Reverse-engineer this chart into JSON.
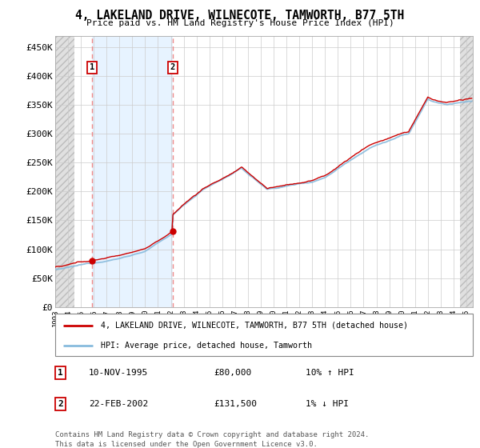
{
  "title": "4, LAKELAND DRIVE, WILNECOTE, TAMWORTH, B77 5TH",
  "subtitle": "Price paid vs. HM Land Registry's House Price Index (HPI)",
  "ylabel_ticks": [
    "£0",
    "£50K",
    "£100K",
    "£150K",
    "£200K",
    "£250K",
    "£300K",
    "£350K",
    "£400K",
    "£450K"
  ],
  "ytick_values": [
    0,
    50000,
    100000,
    150000,
    200000,
    250000,
    300000,
    350000,
    400000,
    450000
  ],
  "ylim": [
    0,
    470000
  ],
  "xlim_start": 1993.0,
  "xlim_end": 2025.5,
  "xtick_years": [
    1993,
    1994,
    1995,
    1996,
    1997,
    1998,
    1999,
    2000,
    2001,
    2002,
    2003,
    2004,
    2005,
    2006,
    2007,
    2008,
    2009,
    2010,
    2011,
    2012,
    2013,
    2014,
    2015,
    2016,
    2017,
    2018,
    2019,
    2020,
    2021,
    2022,
    2023,
    2024,
    2025
  ],
  "transactions": [
    {
      "year": 1995.87,
      "price": 80000,
      "label": "1"
    },
    {
      "year": 2002.15,
      "price": 131500,
      "label": "2"
    }
  ],
  "transaction_info": [
    {
      "num": "1",
      "date": "10-NOV-1995",
      "price": "£80,000",
      "hpi": "10% ↑ HPI"
    },
    {
      "num": "2",
      "date": "22-FEB-2002",
      "price": "£131,500",
      "hpi": "1% ↓ HPI"
    }
  ],
  "legend_line1": "4, LAKELAND DRIVE, WILNECOTE, TAMWORTH, B77 5TH (detached house)",
  "legend_line2": "HPI: Average price, detached house, Tamworth",
  "footer": "Contains HM Land Registry data © Crown copyright and database right 2024.\nThis data is licensed under the Open Government Licence v3.0.",
  "line_color_property": "#cc0000",
  "line_color_hpi": "#88bbdd",
  "hatch_bg_color": "#e8e8e8",
  "blue_shade_color": "#ddeeff",
  "grid_color": "#cccccc",
  "dashed_line_color": "#ee8888"
}
